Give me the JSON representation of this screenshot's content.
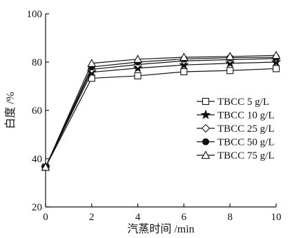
{
  "chart_data": {
    "type": "line",
    "title": "",
    "xlabel": "汽蒸时间 /min",
    "ylabel": "白度 /%",
    "xlim": [
      0,
      10
    ],
    "ylim": [
      20,
      100
    ],
    "x_ticks": [
      0,
      2,
      4,
      6,
      8,
      10
    ],
    "y_ticks": [
      20,
      40,
      60,
      80,
      100
    ],
    "x": [
      0,
      2,
      4,
      6,
      8,
      10
    ],
    "series": [
      {
        "name": "TBCC 5 g/L",
        "marker": "square-open",
        "values": [
          36.5,
          73.3,
          74.3,
          76.0,
          76.5,
          77.3
        ]
      },
      {
        "name": "TBCC 10 g/L",
        "marker": "star-filled",
        "values": [
          36.5,
          75.8,
          77.5,
          78.8,
          79.5,
          80.0
        ]
      },
      {
        "name": "TBCC 25 g/L",
        "marker": "diamond-open",
        "values": [
          36.5,
          77.0,
          79.0,
          80.5,
          81.0,
          81.5
        ]
      },
      {
        "name": "TBCC 50 g/L",
        "marker": "circle-filled",
        "values": [
          36.5,
          78.0,
          80.0,
          81.3,
          81.8,
          82.0
        ]
      },
      {
        "name": "TBCC 75 g/L",
        "marker": "triangle-open",
        "values": [
          36.5,
          79.5,
          81.2,
          82.0,
          82.3,
          82.8
        ]
      }
    ],
    "legend_position": "right",
    "grid": false
  }
}
